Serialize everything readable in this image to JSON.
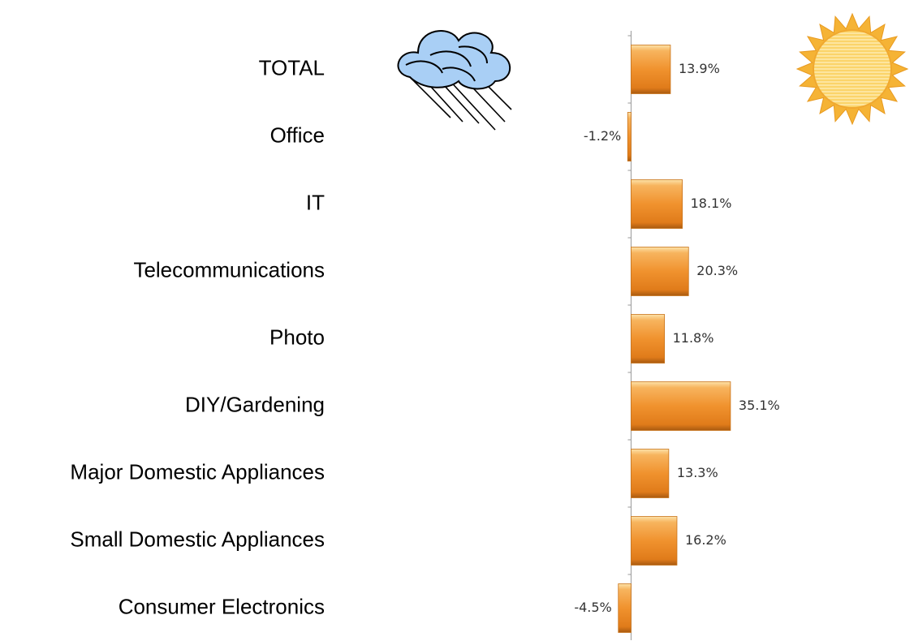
{
  "chart_data": {
    "type": "hbar",
    "categories": [
      "TOTAL",
      "Office",
      "IT",
      "Telecommunications",
      "Photo",
      "DIY/Gardening",
      "Major Domestic Appliances",
      "Small Domestic Appliances",
      "Consumer Electronics"
    ],
    "values": [
      13.9,
      -1.2,
      18.1,
      20.3,
      11.8,
      35.1,
      13.3,
      16.2,
      -4.5
    ],
    "value_labels": [
      "13.9%",
      "-1.2%",
      "18.1%",
      "20.3%",
      "11.8%",
      "35.1%",
      "13.3%",
      "16.2%",
      "-4.5%"
    ],
    "color": "#f0922e",
    "xlim": [
      -5,
      40
    ]
  }
}
